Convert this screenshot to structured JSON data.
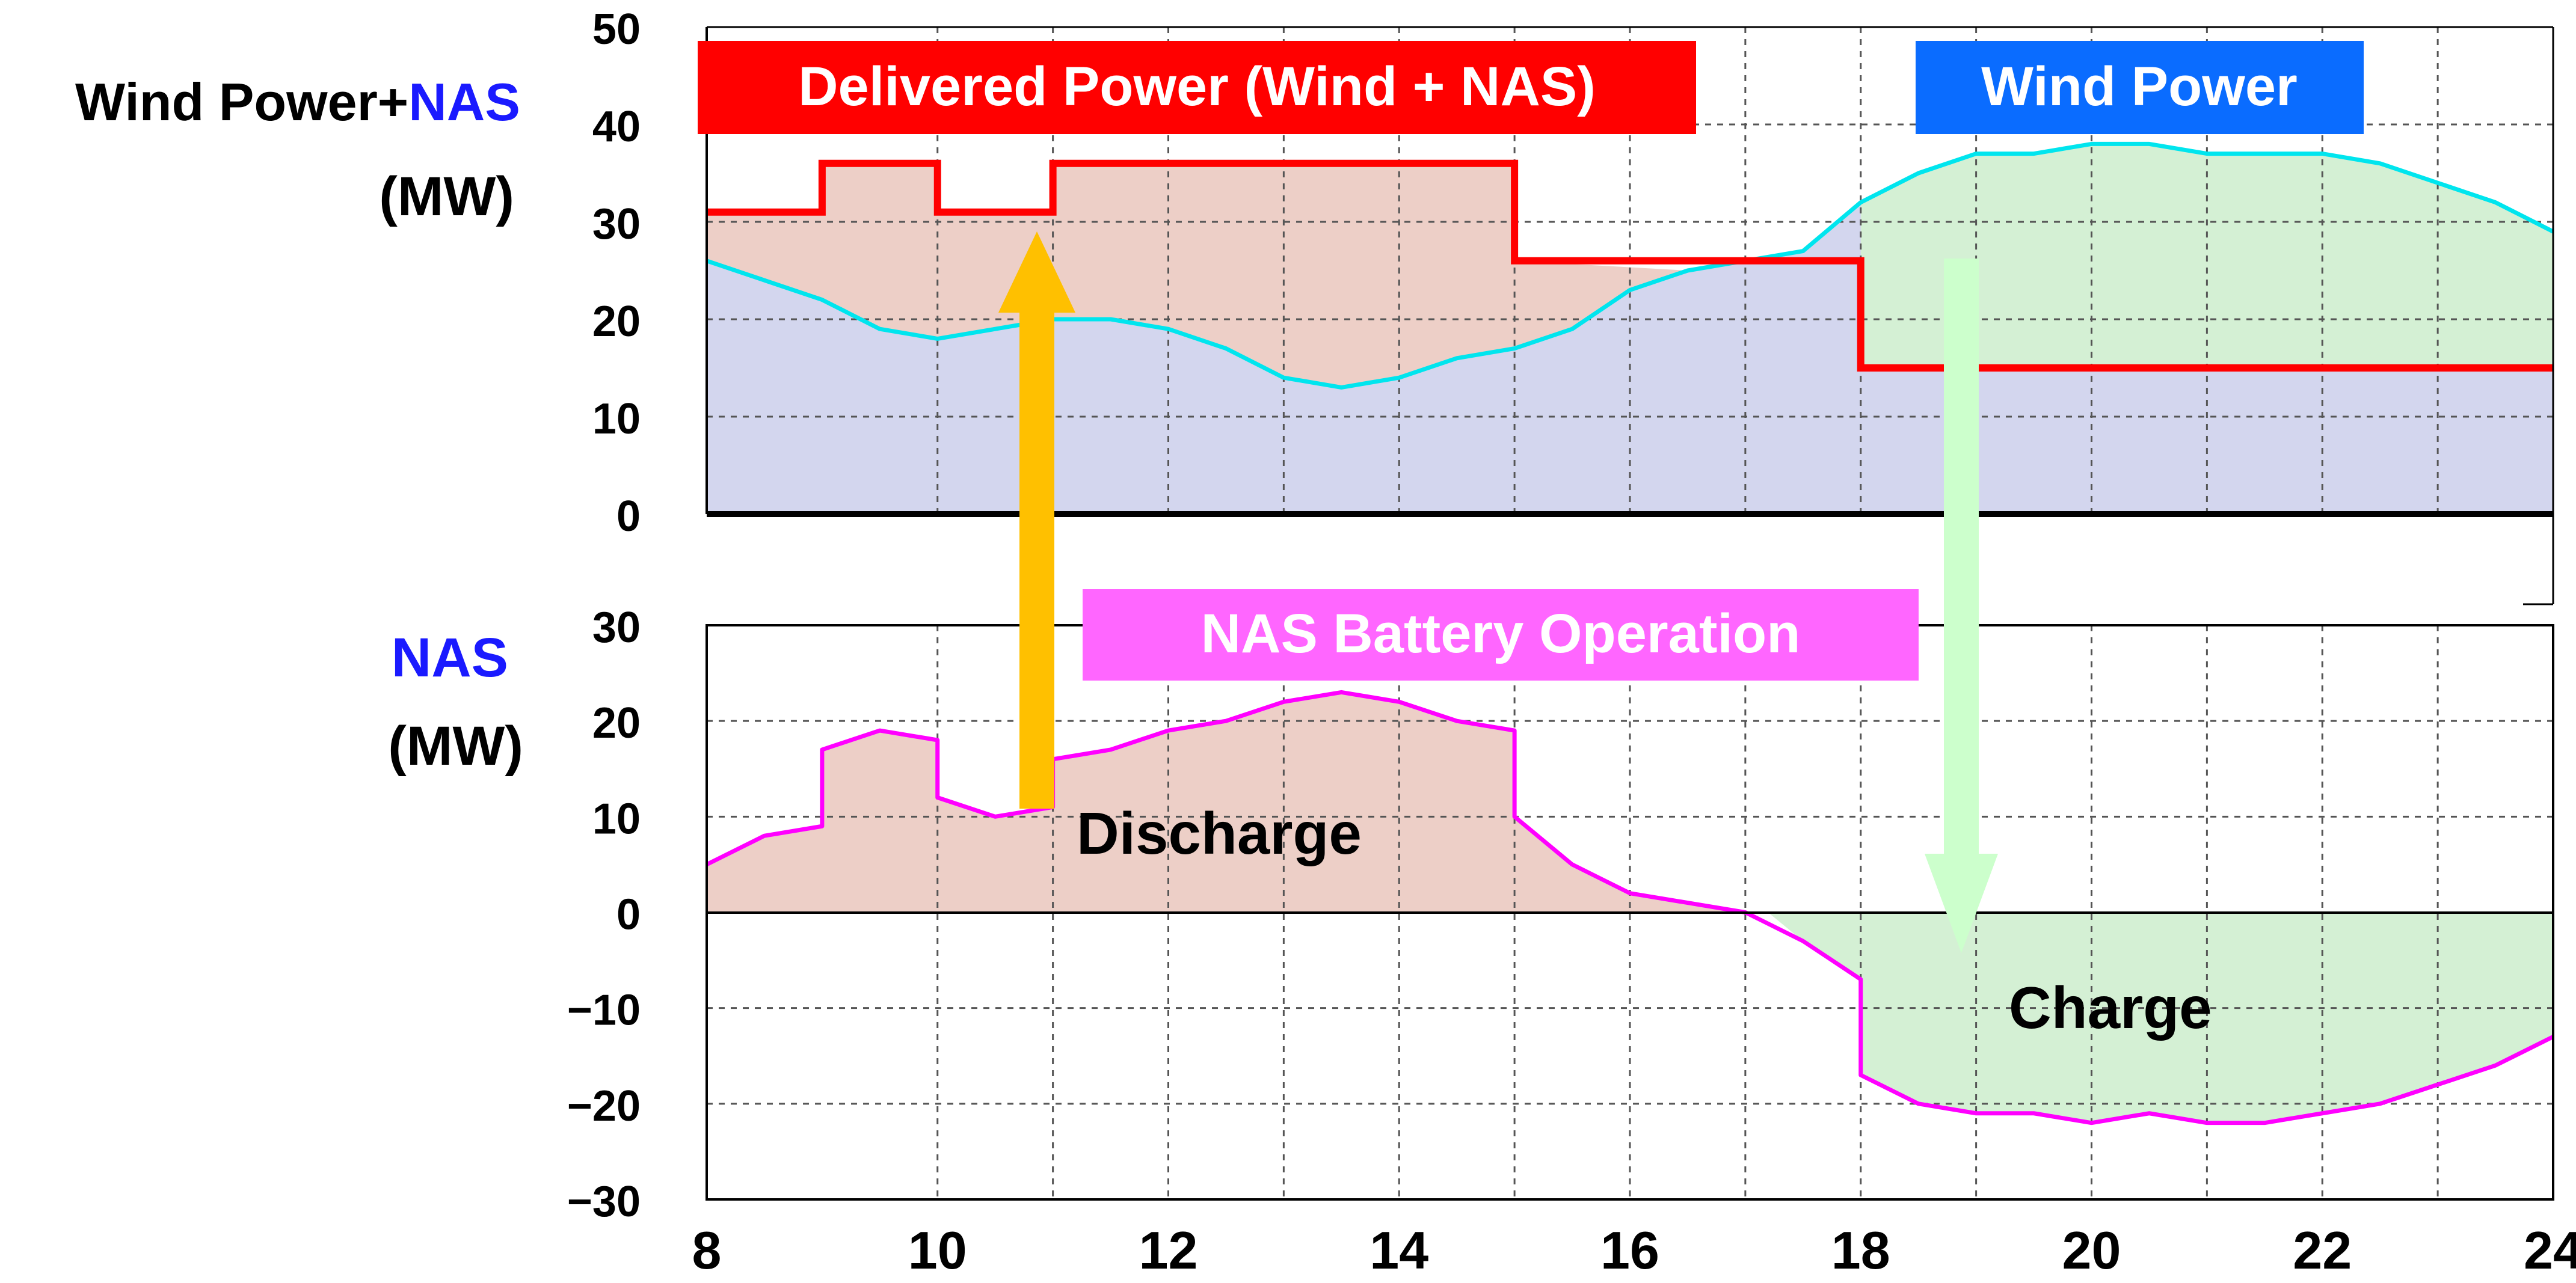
{
  "chart_data": [
    {
      "type": "line",
      "ylabel_parts": [
        "Wind Power+",
        "NAS",
        "(MW)"
      ],
      "ylim": [
        0,
        50
      ],
      "xlim": [
        8,
        24
      ],
      "y_ticks": [
        "50",
        "40",
        "30",
        "20",
        "10",
        "0"
      ],
      "grid": true,
      "legend_labels": {
        "delivered": "Delivered Power (Wind + NAS)",
        "wind": "Wind Power"
      },
      "colors": {
        "delivered": "#ff0000",
        "wind": "#00e5ee",
        "fill_discharge": "#edcfc7",
        "fill_charge": "#d4f0d4",
        "fill_base": "#d3d6ee",
        "label_delivered_bg": "#ff0000",
        "label_wind_bg": "#0a6cff",
        "nas_text": "#1a1aff"
      },
      "series": [
        {
          "key": "delivered",
          "x": [
            8.0,
            9.0,
            9.0,
            10.0,
            10.0,
            11.0,
            11.0,
            15.0,
            15.0,
            18.0,
            18.0,
            24.0
          ],
          "y": [
            31,
            31,
            36,
            36,
            31,
            31,
            36,
            36,
            26,
            26,
            15,
            15
          ]
        },
        {
          "key": "wind",
          "x": [
            8.0,
            8.5,
            9.0,
            9.5,
            10.0,
            10.5,
            11.0,
            11.5,
            12.0,
            12.5,
            13.0,
            13.5,
            14.0,
            14.5,
            15.0,
            15.5,
            16.0,
            16.5,
            17.0,
            17.5,
            18.0,
            18.5,
            19.0,
            19.5,
            20.0,
            20.5,
            21.0,
            21.5,
            22.0,
            22.5,
            23.0,
            23.5,
            24.0
          ],
          "y": [
            26,
            24,
            22,
            19,
            18,
            19,
            20,
            20,
            19,
            17,
            14,
            13,
            14,
            16,
            17,
            19,
            23,
            25,
            26,
            27,
            32,
            35,
            37,
            37,
            38,
            38,
            37,
            37,
            37,
            36,
            34,
            32,
            29
          ]
        }
      ]
    },
    {
      "type": "line",
      "ylabel_parts": [
        "NAS",
        "(MW)"
      ],
      "ylim": [
        -30,
        30
      ],
      "xlim": [
        8,
        24
      ],
      "y_ticks": [
        "30",
        "20",
        "10",
        "0",
        "−10",
        "−20",
        "−30"
      ],
      "x_ticks": [
        "8",
        "10",
        "12",
        "14",
        "16",
        "18",
        "20",
        "22",
        "24"
      ],
      "grid": true,
      "legend_labels": {
        "title": "NAS Battery Operation"
      },
      "annotations": {
        "discharge": "Discharge",
        "charge": "Charge"
      },
      "colors": {
        "nas": "#ff00ff",
        "label_bg": "#ff66ff",
        "discharge_arrow": "#ffc000",
        "charge_arrow": "#ccffcc"
      },
      "series": [
        {
          "key": "nas",
          "x": [
            8.0,
            8.5,
            9.0,
            9.0,
            9.5,
            10.0,
            10.0,
            10.5,
            11.0,
            11.0,
            11.5,
            12.0,
            12.5,
            13.0,
            13.5,
            14.0,
            14.5,
            15.0,
            15.0,
            15.5,
            16.0,
            16.5,
            17.0,
            17.5,
            18.0,
            18.0,
            18.5,
            19.0,
            19.5,
            20.0,
            20.5,
            21.0,
            21.5,
            22.0,
            22.5,
            23.0,
            23.5,
            24.0
          ],
          "y": [
            5,
            8,
            9,
            17,
            19,
            18,
            12,
            10,
            11,
            16,
            17,
            19,
            20,
            22,
            23,
            22,
            20,
            19,
            10,
            5,
            2,
            1,
            0,
            -3,
            -7,
            -17,
            -20,
            -21,
            -21,
            -22,
            -21,
            -22,
            -22,
            -21,
            -20,
            -18,
            -16,
            -13
          ]
        }
      ]
    }
  ]
}
